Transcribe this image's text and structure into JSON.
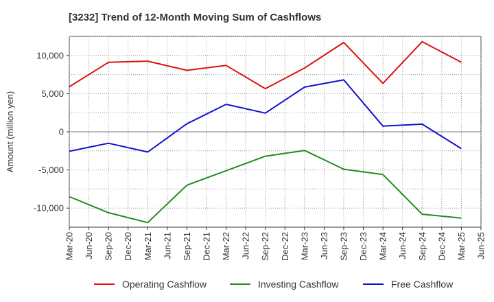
{
  "chart_data": {
    "type": "line",
    "title": "[3232]  Trend of 12-Month Moving Sum of Cashflows",
    "xlabel": "",
    "ylabel": "Amount (million yen)",
    "ylim": [
      -12500,
      12500
    ],
    "yticks": [
      -10000,
      -5000,
      0,
      5000,
      10000
    ],
    "ytick_labels": [
      "-10,000",
      "-5,000",
      "0",
      "5,000",
      "10,000"
    ],
    "x_tick_labels": [
      "Mar-20",
      "Jun-20",
      "Sep-20",
      "Dec-20",
      "Mar-21",
      "Jun-21",
      "Sep-21",
      "Dec-21",
      "Mar-22",
      "Jun-22",
      "Sep-22",
      "Dec-22",
      "Mar-23",
      "Jun-23",
      "Sep-23",
      "Dec-23",
      "Mar-24",
      "Jun-24",
      "Sep-24",
      "Dec-24",
      "Mar-25",
      "Jun-25"
    ],
    "grid": true,
    "legend_position": "bottom",
    "series": [
      {
        "name": "Operating Cashflow",
        "color": "#dd1111",
        "x": [
          "Mar-20",
          "Sep-20",
          "Mar-21",
          "Sep-21",
          "Mar-22",
          "Sep-22",
          "Mar-23",
          "Sep-23",
          "Mar-24",
          "Sep-24",
          "Mar-25"
        ],
        "values": [
          5900,
          9100,
          9250,
          8050,
          8700,
          5650,
          8350,
          11700,
          6350,
          11800,
          9100
        ]
      },
      {
        "name": "Investing Cashflow",
        "color": "#228b22",
        "x": [
          "Mar-20",
          "Sep-20",
          "Mar-21",
          "Sep-21",
          "Mar-22",
          "Sep-22",
          "Mar-23",
          "Sep-23",
          "Mar-24",
          "Sep-24",
          "Mar-25"
        ],
        "values": [
          -8500,
          -10600,
          -11900,
          -7000,
          -5100,
          -3200,
          -2450,
          -4900,
          -5600,
          -10800,
          -11300
        ]
      },
      {
        "name": "Free Cashflow",
        "color": "#1111cc",
        "x": [
          "Mar-20",
          "Sep-20",
          "Mar-21",
          "Sep-21",
          "Mar-22",
          "Sep-22",
          "Mar-23",
          "Sep-23",
          "Mar-24",
          "Sep-24",
          "Mar-25"
        ],
        "values": [
          -2550,
          -1500,
          -2650,
          1050,
          3600,
          2450,
          5850,
          6800,
          750,
          1000,
          -2200
        ]
      }
    ]
  }
}
